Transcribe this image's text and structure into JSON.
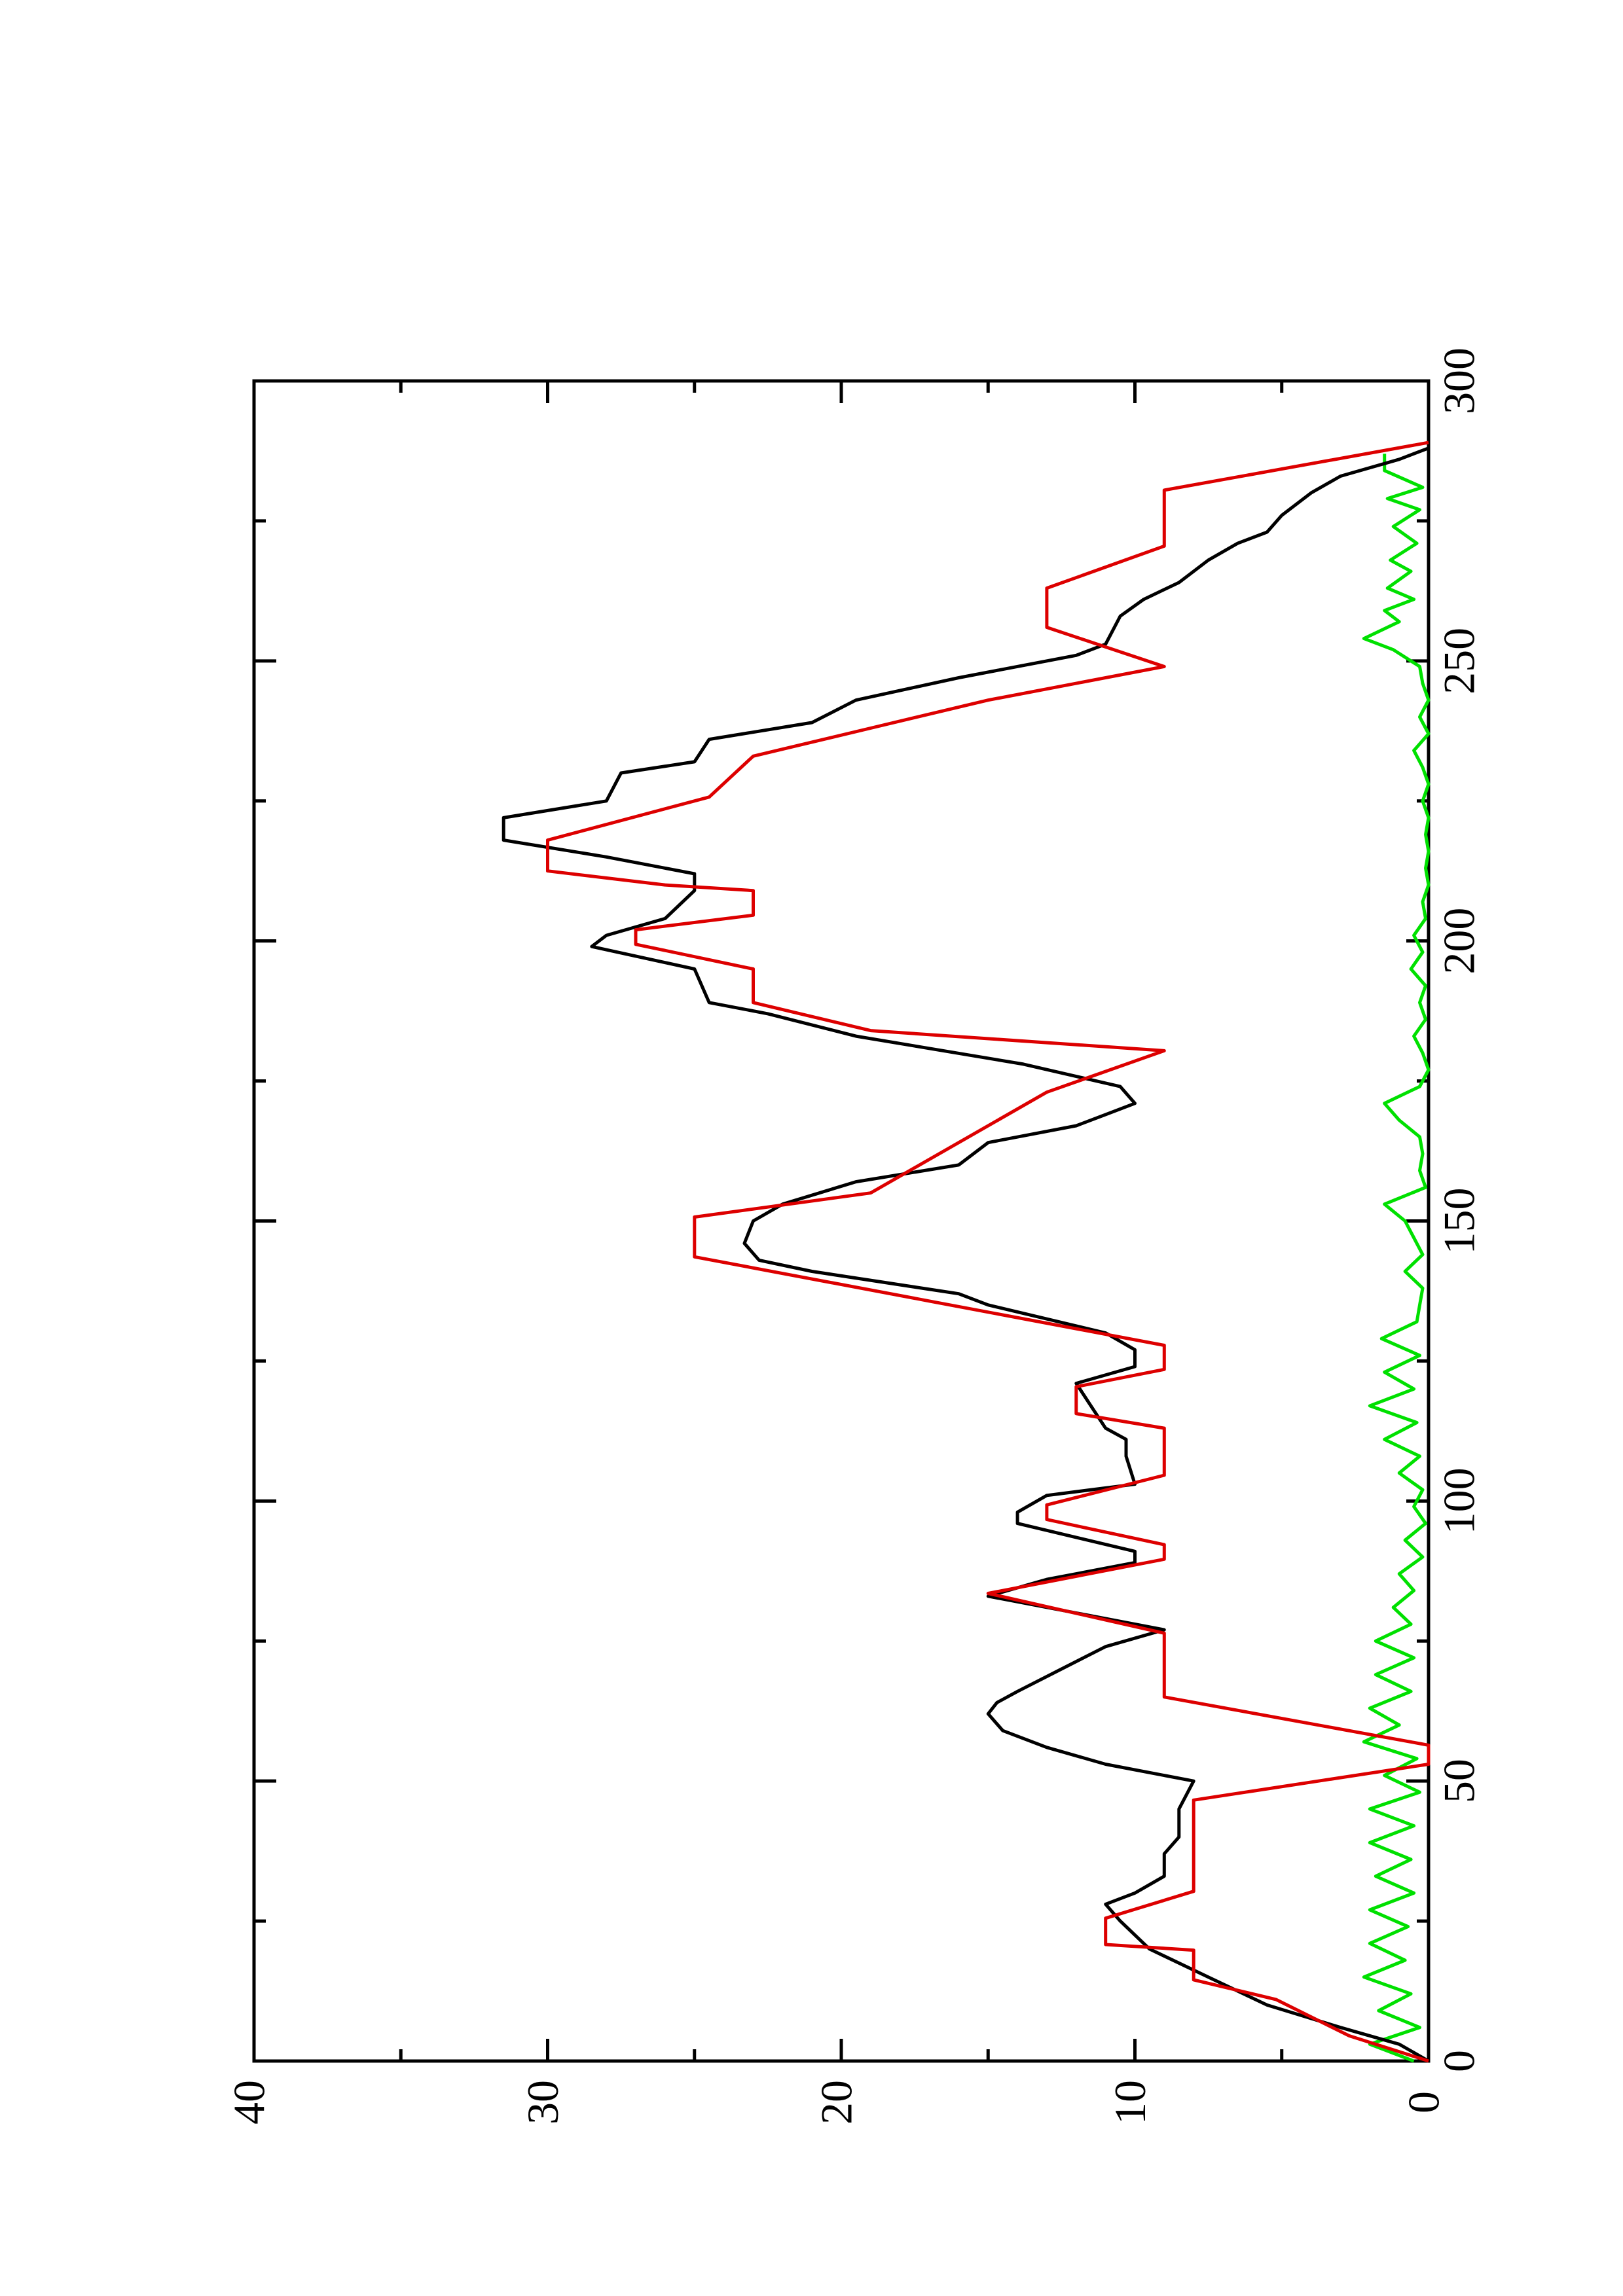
{
  "chart_data": {
    "type": "line",
    "orientation": "rotated",
    "xlim": [
      0,
      300
    ],
    "xticks": [
      0,
      50,
      100,
      150,
      200,
      250,
      300
    ],
    "xminor_ticks": [
      25,
      75,
      125,
      175,
      225,
      275
    ],
    "ylim": [
      0,
      40
    ],
    "yticks": [
      0,
      10,
      20,
      30,
      40
    ],
    "yminor_ticks": [
      5,
      15,
      25,
      35
    ],
    "series": [
      {
        "color": "#00e000",
        "x": [
          0,
          3,
          6,
          9,
          12,
          15,
          18,
          21,
          24,
          27,
          30,
          33,
          36,
          39,
          42,
          45,
          48,
          51,
          54,
          57,
          60,
          63,
          66,
          69,
          72,
          75,
          78,
          81,
          84,
          87,
          90,
          93,
          96,
          99,
          102,
          105,
          108,
          111,
          114,
          117,
          120,
          123,
          126,
          129,
          132,
          135,
          138,
          141,
          144,
          147,
          150,
          153,
          156,
          159,
          162,
          165,
          168,
          171,
          174,
          177,
          180,
          183,
          186,
          189,
          192,
          195,
          198,
          201,
          204,
          207,
          210,
          213,
          216,
          219,
          222,
          225,
          228,
          231,
          234,
          237,
          240,
          243,
          246,
          249,
          252,
          254,
          257,
          259,
          261,
          263,
          266,
          268,
          271,
          274,
          277,
          279,
          281,
          284,
          287
        ],
        "values": [
          0.5,
          2,
          0.3,
          1.7,
          0.6,
          2.2,
          0.8,
          2,
          0.7,
          2,
          0.5,
          1.8,
          0.6,
          2,
          0.5,
          2,
          0.3,
          1.5,
          0.4,
          2.2,
          1,
          2,
          0.6,
          1.8,
          0.5,
          1.8,
          0.6,
          1.2,
          0.5,
          1,
          0.2,
          0.8,
          0.1,
          0.5,
          0.2,
          1,
          0.3,
          1.5,
          0.4,
          2,
          0.5,
          1.5,
          0.3,
          1.6,
          0.4,
          0.3,
          0.2,
          0.8,
          0.2,
          0.5,
          0.8,
          1.5,
          0.1,
          0.3,
          0.2,
          0.3,
          1,
          1.5,
          0.3,
          0,
          0.2,
          0.5,
          0.1,
          0.3,
          0.1,
          0.6,
          0.2,
          0.5,
          0.1,
          0.2,
          0,
          0.1,
          0,
          0.1,
          0,
          0.2,
          0,
          0.2,
          0.5,
          0,
          0.3,
          0,
          0.2,
          0.3,
          1.2,
          2.2,
          1,
          1.5,
          0.5,
          1.4,
          0.6,
          1.3,
          0.4,
          1.2,
          0.3,
          1.4,
          0.2,
          1.5,
          1.5
        ]
      },
      {
        "color": "#000000",
        "x": [
          0,
          3,
          6,
          10,
          15,
          20,
          25,
          28,
          30,
          33,
          37,
          40,
          45,
          50,
          53,
          56,
          59,
          62,
          64,
          66,
          70,
          74,
          77,
          83,
          86,
          89,
          91,
          96,
          98,
          101,
          103,
          108,
          111,
          113,
          117,
          121,
          124,
          127,
          130,
          135,
          137,
          141,
          143,
          146,
          150,
          153,
          157,
          160,
          164,
          167,
          169,
          171,
          174,
          178,
          183,
          187,
          189,
          195,
          199,
          201,
          204,
          209,
          212,
          215,
          218,
          222,
          225,
          230,
          232,
          236,
          239,
          243,
          247,
          251,
          253,
          258,
          261,
          264,
          268,
          271,
          273,
          276,
          280,
          283,
          286,
          288
        ],
        "values": [
          0,
          1,
          3,
          5.5,
          7.5,
          9.5,
          10.5,
          11,
          10,
          9,
          9,
          8.5,
          8.5,
          8,
          11,
          13,
          14.5,
          15,
          14.7,
          14,
          12.5,
          11,
          9,
          15,
          13,
          10,
          10,
          14,
          14,
          13,
          10,
          10.3,
          10.3,
          11,
          11.5,
          12,
          10,
          10,
          11,
          15,
          16,
          21,
          22.8,
          23.3,
          23,
          22,
          19.5,
          16,
          15,
          12,
          11,
          10,
          10.5,
          13.8,
          19.5,
          22.5,
          24.5,
          25,
          28.5,
          28,
          26,
          25,
          25,
          28,
          31.5,
          31.5,
          28,
          27.5,
          25,
          24.5,
          21,
          19.5,
          16,
          12,
          11,
          10.5,
          9.7,
          8.5,
          7.5,
          6.5,
          5.5,
          5,
          4,
          3,
          1,
          0
        ]
      },
      {
        "color": "#dd0000",
        "x": [
          0,
          4.5,
          11,
          14.5,
          19.8,
          20.8,
          25.5,
          30.3,
          46.6,
          53,
          56.4,
          65,
          76.4,
          83.5,
          89.6,
          92.2,
          96.7,
          99.3,
          104.6,
          113,
          115.6,
          120.4,
          123.5,
          127.8,
          135.7,
          143.6,
          150.7,
          155,
          173,
          180.4,
          184,
          189,
          195,
          199.4,
          202,
          204.6,
          209,
          210,
          212.5,
          218,
          225.7,
          233,
          238,
          243,
          249,
          256,
          263,
          270.5,
          280.5,
          289
        ],
        "values": [
          0,
          2.7,
          5.2,
          8,
          8,
          11,
          11,
          8,
          8,
          0,
          0,
          9,
          9,
          15,
          9,
          9,
          13,
          13,
          9,
          9,
          12,
          12,
          9,
          9,
          17,
          25,
          25,
          19,
          13,
          9,
          19,
          23,
          23,
          27,
          27,
          23,
          23,
          26,
          30,
          30,
          24.5,
          23,
          19,
          15,
          9,
          13,
          13,
          9,
          9,
          0
        ]
      }
    ]
  }
}
